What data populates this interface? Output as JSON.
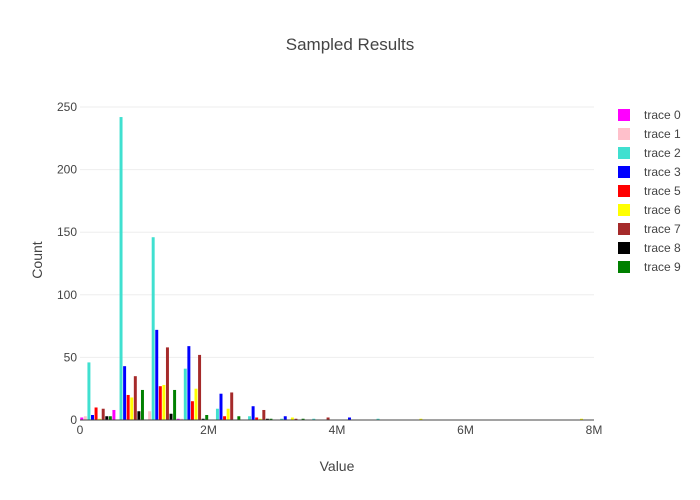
{
  "chart_data": {
    "type": "bar",
    "title": "Sampled Results",
    "xlabel": "Value",
    "ylabel": "Count",
    "xlim": [
      0,
      8000000
    ],
    "ylim": [
      0,
      262
    ],
    "xticks": [
      {
        "value": 0,
        "label": "0"
      },
      {
        "value": 2000000,
        "label": "2M"
      },
      {
        "value": 4000000,
        "label": "4M"
      },
      {
        "value": 6000000,
        "label": "6M"
      },
      {
        "value": 8000000,
        "label": "8M"
      }
    ],
    "yticks": [
      {
        "value": 0,
        "label": "0"
      },
      {
        "value": 50,
        "label": "50"
      },
      {
        "value": 100,
        "label": "100"
      },
      {
        "value": 150,
        "label": "150"
      },
      {
        "value": 200,
        "label": "200"
      },
      {
        "value": 250,
        "label": "250"
      }
    ],
    "grid": true,
    "legend_position": "right",
    "bin_width": 500000,
    "bin_starts": [
      0,
      500000,
      1000000,
      1500000,
      2000000,
      2500000,
      3000000,
      3500000,
      4000000,
      4500000,
      5000000,
      5500000,
      6000000,
      6500000,
      7000000,
      7500000
    ],
    "series": [
      {
        "name": "trace 0",
        "color": "#ff00ff",
        "values": [
          2,
          8,
          0,
          1,
          0,
          0,
          0,
          0,
          0,
          0,
          0,
          0,
          0,
          0,
          0,
          0
        ]
      },
      {
        "name": "trace 1",
        "color": "#ffc0cb",
        "values": [
          3,
          0,
          7,
          1,
          0,
          0,
          0,
          0,
          0,
          0,
          0,
          0,
          0,
          0,
          0,
          0
        ]
      },
      {
        "name": "trace 2",
        "color": "#40e0d0",
        "values": [
          46,
          242,
          146,
          41,
          9,
          3,
          1,
          1,
          0,
          1,
          0,
          0,
          0,
          0,
          0,
          0
        ]
      },
      {
        "name": "trace 3",
        "color": "#0000ff",
        "values": [
          4,
          43,
          72,
          59,
          21,
          11,
          3,
          0,
          2,
          0,
          0,
          0,
          0,
          0,
          0,
          0
        ]
      },
      {
        "name": "trace 5",
        "color": "#ff0000",
        "values": [
          10,
          20,
          27,
          15,
          3,
          2,
          0,
          0,
          0,
          0,
          0,
          0,
          0,
          0,
          0,
          0
        ]
      },
      {
        "name": "trace 6",
        "color": "#ffff00",
        "values": [
          1,
          18,
          28,
          25,
          9,
          1,
          2,
          0,
          0,
          0,
          1,
          0,
          0,
          0,
          0,
          1
        ]
      },
      {
        "name": "trace 7",
        "color": "#a52a2a",
        "values": [
          9,
          35,
          58,
          52,
          22,
          8,
          1,
          2,
          0,
          0,
          0,
          0,
          0,
          0,
          0,
          0
        ]
      },
      {
        "name": "trace 8",
        "color": "#000000",
        "values": [
          3,
          7,
          5,
          1,
          0,
          1,
          0,
          0,
          0,
          0,
          0,
          0,
          0,
          0,
          0,
          0
        ]
      },
      {
        "name": "trace 9",
        "color": "#008000",
        "values": [
          3,
          24,
          24,
          4,
          3,
          1,
          1,
          0,
          0,
          0,
          0,
          0,
          0,
          0,
          0,
          0
        ]
      }
    ]
  }
}
